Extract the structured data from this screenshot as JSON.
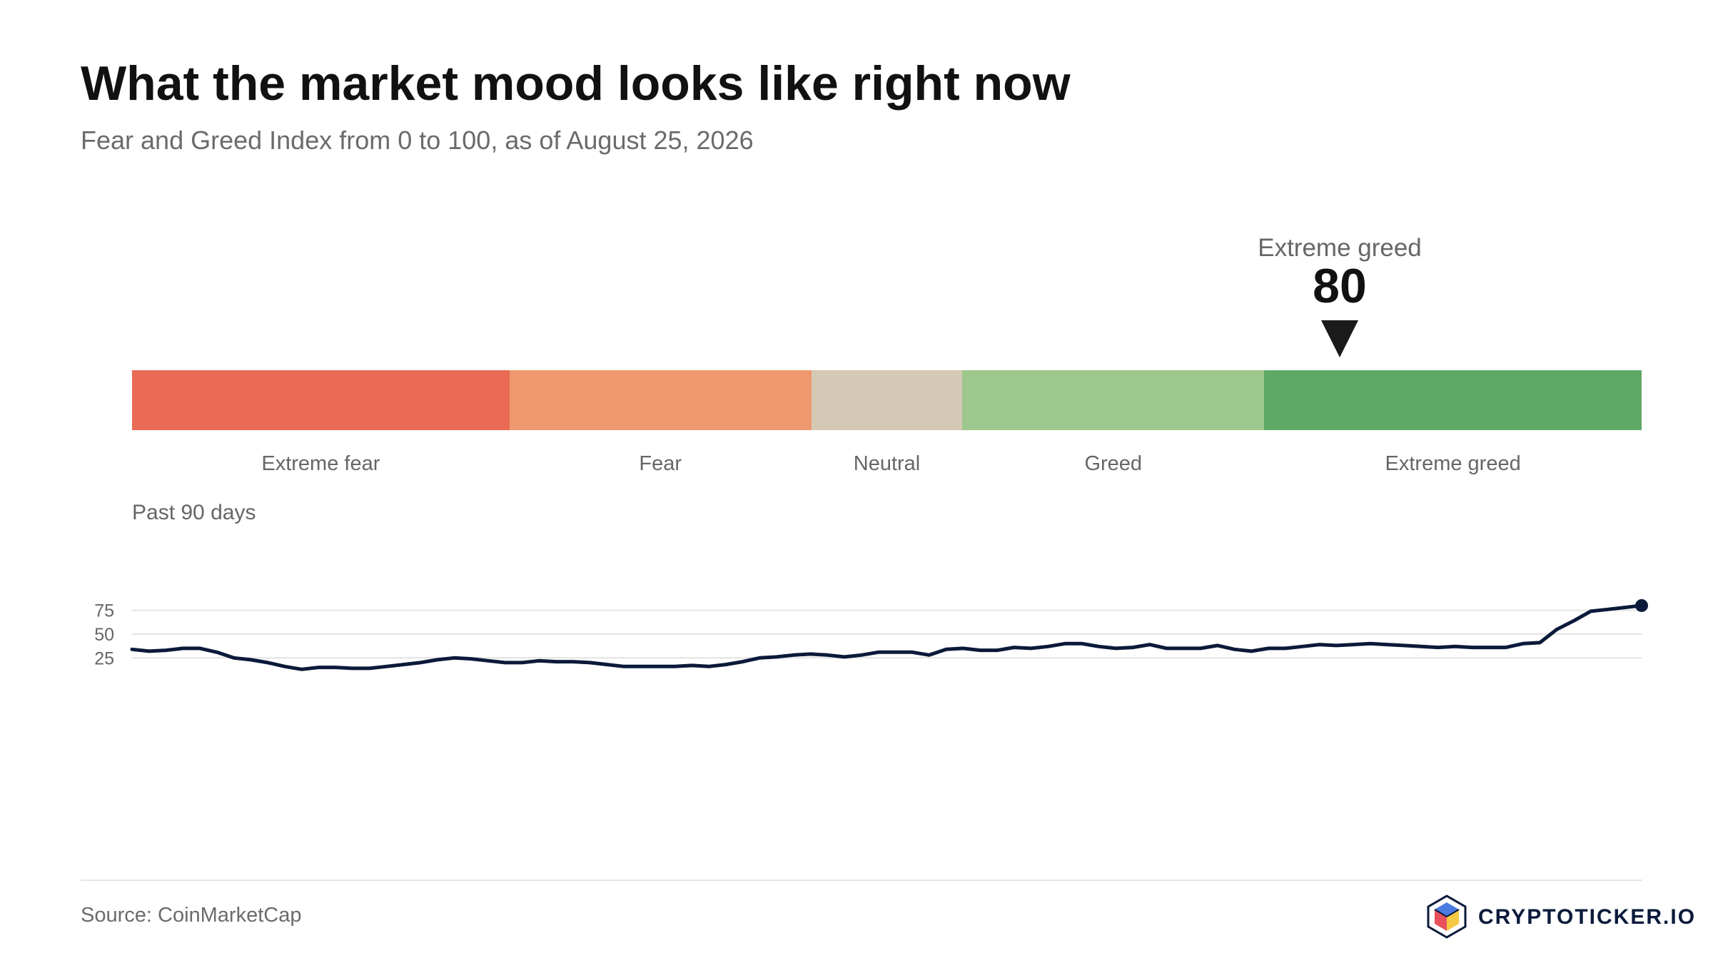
{
  "header": {
    "title": "What the market mood looks like right now",
    "subtitle": "Fear and Greed Index from 0 to 100, as of August 25, 2026"
  },
  "gauge": {
    "value": 80,
    "value_label": "80",
    "state_label": "Extreme greed",
    "zones": [
      {
        "label": "Extreme fear",
        "min": 0,
        "max": 25,
        "color": "#e96a55"
      },
      {
        "label": "Fear",
        "min": 25,
        "max": 45,
        "color": "#ef9870"
      },
      {
        "label": "Neutral",
        "min": 45,
        "max": 55,
        "color": "#d3c9b5"
      },
      {
        "label": "Greed",
        "min": 55,
        "max": 75,
        "color": "#9dc78c"
      },
      {
        "label": "Extreme greed",
        "min": 75,
        "max": 100,
        "color": "#5fa866"
      }
    ]
  },
  "chart_data": {
    "type": "line",
    "title": "Past 90 days",
    "yticks": [
      25,
      50,
      75
    ],
    "grid": true,
    "line_color": "#0b1a3a",
    "values": [
      34,
      32,
      33,
      35,
      35,
      31,
      25,
      23,
      20,
      16,
      13,
      15,
      15,
      14,
      14,
      16,
      18,
      20,
      23,
      25,
      24,
      22,
      20,
      20,
      22,
      21,
      21,
      20,
      18,
      16,
      16,
      16,
      16,
      17,
      16,
      18,
      21,
      25,
      26,
      28,
      29,
      28,
      26,
      28,
      31,
      31,
      31,
      28,
      34,
      35,
      33,
      33,
      36,
      35,
      37,
      40,
      40,
      37,
      35,
      36,
      39,
      35,
      35,
      35,
      38,
      34,
      32,
      35,
      35,
      37,
      39,
      38,
      39,
      40,
      39,
      38,
      37,
      36,
      37,
      36,
      36,
      36,
      40,
      41,
      55,
      64,
      74,
      76,
      78,
      80
    ]
  },
  "footer": {
    "source": "Source: CoinMarketCap",
    "brand": "CRYPTOTICKER.IO"
  }
}
